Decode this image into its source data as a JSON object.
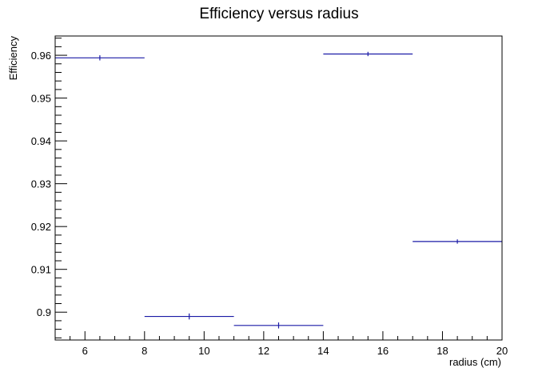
{
  "chart_data": {
    "type": "scatter",
    "title": "Efficiency versus radius",
    "xlabel": "radius (cm)",
    "ylabel": "Efficiency",
    "xlim": [
      5,
      20
    ],
    "ylim": [
      0.8935,
      0.9645
    ],
    "x_ticks": [
      6,
      8,
      10,
      12,
      14,
      16,
      18,
      20
    ],
    "y_ticks": [
      0.9,
      0.91,
      0.92,
      0.93,
      0.94,
      0.95,
      0.96
    ],
    "x_tick_labels": [
      "6",
      "8",
      "10",
      "12",
      "14",
      "16",
      "18",
      "20"
    ],
    "y_tick_labels": [
      "0.9",
      "0.91",
      "0.92",
      "0.93",
      "0.94",
      "0.95",
      "0.96"
    ],
    "grid": false,
    "legend": "none",
    "series_color": "#1a1aa6",
    "points": [
      {
        "x": 6.5,
        "xlow": 5,
        "xhigh": 8,
        "y": 0.9594,
        "yerr": 0.0006
      },
      {
        "x": 9.5,
        "xlow": 8,
        "xhigh": 11,
        "y": 0.899,
        "yerr": 0.0007
      },
      {
        "x": 12.5,
        "xlow": 11,
        "xhigh": 14,
        "y": 0.8969,
        "yerr": 0.0007
      },
      {
        "x": 15.5,
        "xlow": 14,
        "xhigh": 17,
        "y": 0.9603,
        "yerr": 0.0005
      },
      {
        "x": 18.5,
        "xlow": 17,
        "xhigh": 20,
        "y": 0.9165,
        "yerr": 0.0005
      }
    ]
  }
}
